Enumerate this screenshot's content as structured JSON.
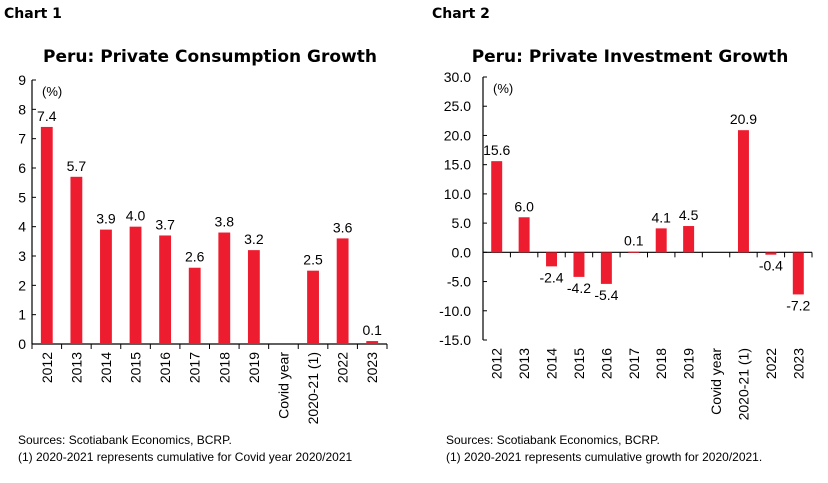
{
  "chart_data": [
    {
      "type": "bar",
      "label": "Chart 1",
      "title": "Peru: Private Consumption Growth",
      "unit_label": "(%)",
      "categories": [
        "2012",
        "2013",
        "2014",
        "2015",
        "2016",
        "2017",
        "2018",
        "2019",
        "Covid year",
        "2020-21 (1)",
        "2022",
        "2023"
      ],
      "values": [
        7.4,
        5.7,
        3.9,
        4.0,
        3.7,
        2.6,
        3.8,
        3.2,
        null,
        2.5,
        3.6,
        0.1
      ],
      "data_labels": [
        "7.4",
        "5.7",
        "3.9",
        "4.0",
        "3.7",
        "2.6",
        "3.8",
        "3.2",
        "",
        "2.5",
        "3.6",
        "0.1"
      ],
      "ylim": [
        0,
        9
      ],
      "yticks": [
        "0",
        "1",
        "2",
        "3",
        "4",
        "5",
        "6",
        "7",
        "8",
        "9"
      ],
      "grid": false,
      "bar_color": "#ED1C2E",
      "notes": [
        "Sources: Scotiabank Economics, BCRP.",
        "(1) 2020-2021 represents cumulative for Covid year 2020/2021"
      ]
    },
    {
      "type": "bar",
      "label": "Chart 2",
      "title": "Peru: Private Investment Growth",
      "unit_label": "(%)",
      "categories": [
        "2012",
        "2013",
        "2014",
        "2015",
        "2016",
        "2017",
        "2018",
        "2019",
        "Covid year",
        "2020-21 (1)",
        "2022",
        "2023"
      ],
      "values": [
        15.6,
        6.0,
        -2.4,
        -4.2,
        -5.4,
        0.1,
        4.1,
        4.5,
        null,
        20.9,
        -0.4,
        -7.2
      ],
      "data_labels": [
        "15.6",
        "6.0",
        "-2.4",
        "-4.2",
        "-5.4",
        "0.1",
        "4.1",
        "4.5",
        "",
        "20.9",
        "-0.4",
        "-7.2"
      ],
      "ylim": [
        -15,
        30
      ],
      "yticks": [
        "-15.0",
        "-10.0",
        "-5.0",
        "0.0",
        "5.0",
        "10.0",
        "15.0",
        "20.0",
        "25.0",
        "30.0"
      ],
      "grid": false,
      "bar_color": "#ED1C2E",
      "notes": [
        "Sources: Scotiabank Economics, BCRP.",
        "(1) 2020-2021 represents cumulative growth for 2020/2021."
      ]
    }
  ]
}
